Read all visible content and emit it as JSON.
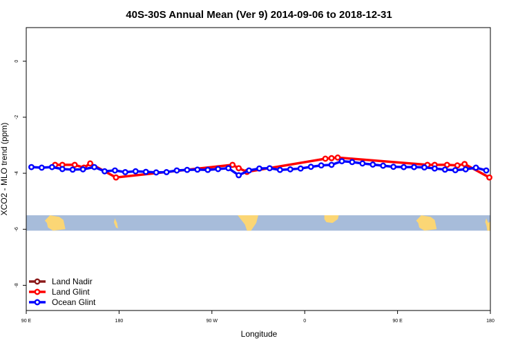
{
  "chart_data": {
    "type": "line",
    "title": "40S-30S Annual Mean (Ver 9)   2014-09-06 to 2018-12-31",
    "xlabel": "Longitude",
    "ylabel": "XCO2 - MLO trend (ppm)",
    "xlim": [
      0,
      450
    ],
    "ylim": [
      -8.9,
      1.2
    ],
    "x_ticks": [
      {
        "value": 0,
        "label": "90 E"
      },
      {
        "value": 90,
        "label": "180"
      },
      {
        "value": 180,
        "label": "90 W"
      },
      {
        "value": 270,
        "label": "0"
      },
      {
        "value": 360,
        "label": "90 E"
      },
      {
        "value": 450,
        "label": "180"
      }
    ],
    "y_ticks": [
      {
        "value": 0,
        "label": "0"
      },
      {
        "value": -2,
        "label": "-2"
      },
      {
        "value": -4,
        "label": "-4"
      },
      {
        "value": -6,
        "label": "-6"
      },
      {
        "value": -8,
        "label": "-8"
      }
    ],
    "map_strip": {
      "lat_range": [
        -40,
        -30
      ],
      "y_range": [
        -5.5,
        -6.05
      ],
      "ocean_color": "#a7bcda",
      "land_color": "#fbd675"
    },
    "series": [
      {
        "name": "Land Nadir",
        "color": "#8b1a1a",
        "points": []
      },
      {
        "name": "Land Glint",
        "color": "#ff0000",
        "points": [
          [
            28,
            -3.7
          ],
          [
            35,
            -3.7
          ],
          [
            47,
            -3.7
          ],
          [
            56,
            -3.8
          ],
          [
            62,
            -3.65
          ],
          [
            87,
            -4.15
          ],
          [
            200,
            -3.7
          ],
          [
            206,
            -3.82
          ],
          [
            214,
            -3.95
          ],
          [
            290,
            -3.48
          ],
          [
            296,
            -3.46
          ],
          [
            302,
            -3.44
          ],
          [
            389,
            -3.7
          ],
          [
            396,
            -3.7
          ],
          [
            408,
            -3.7
          ],
          [
            418,
            -3.72
          ],
          [
            425,
            -3.67
          ],
          [
            449,
            -4.15
          ]
        ]
      },
      {
        "name": "Ocean Glint",
        "color": "#0000ff",
        "points": [
          [
            5,
            -3.78
          ],
          [
            15,
            -3.8
          ],
          [
            25,
            -3.78
          ],
          [
            35,
            -3.85
          ],
          [
            45,
            -3.87
          ],
          [
            55,
            -3.86
          ],
          [
            66,
            -3.78
          ],
          [
            76,
            -3.93
          ],
          [
            86,
            -3.9
          ],
          [
            96,
            -3.96
          ],
          [
            106,
            -3.93
          ],
          [
            116,
            -3.95
          ],
          [
            126,
            -3.97
          ],
          [
            136,
            -3.96
          ],
          [
            146,
            -3.9
          ],
          [
            156,
            -3.88
          ],
          [
            166,
            -3.87
          ],
          [
            176,
            -3.88
          ],
          [
            186,
            -3.85
          ],
          [
            196,
            -3.82
          ],
          [
            206,
            -4.07
          ],
          [
            216,
            -3.9
          ],
          [
            226,
            -3.83
          ],
          [
            236,
            -3.82
          ],
          [
            246,
            -3.88
          ],
          [
            256,
            -3.86
          ],
          [
            266,
            -3.83
          ],
          [
            276,
            -3.77
          ],
          [
            286,
            -3.72
          ],
          [
            296,
            -3.7
          ],
          [
            306,
            -3.57
          ],
          [
            316,
            -3.6
          ],
          [
            326,
            -3.65
          ],
          [
            336,
            -3.69
          ],
          [
            346,
            -3.73
          ],
          [
            356,
            -3.77
          ],
          [
            366,
            -3.78
          ],
          [
            376,
            -3.78
          ],
          [
            386,
            -3.79
          ],
          [
            396,
            -3.83
          ],
          [
            406,
            -3.87
          ],
          [
            416,
            -3.89
          ],
          [
            426,
            -3.86
          ],
          [
            436,
            -3.8
          ],
          [
            446,
            -3.9
          ]
        ]
      }
    ],
    "legend": {
      "position": "bottom-left"
    }
  }
}
